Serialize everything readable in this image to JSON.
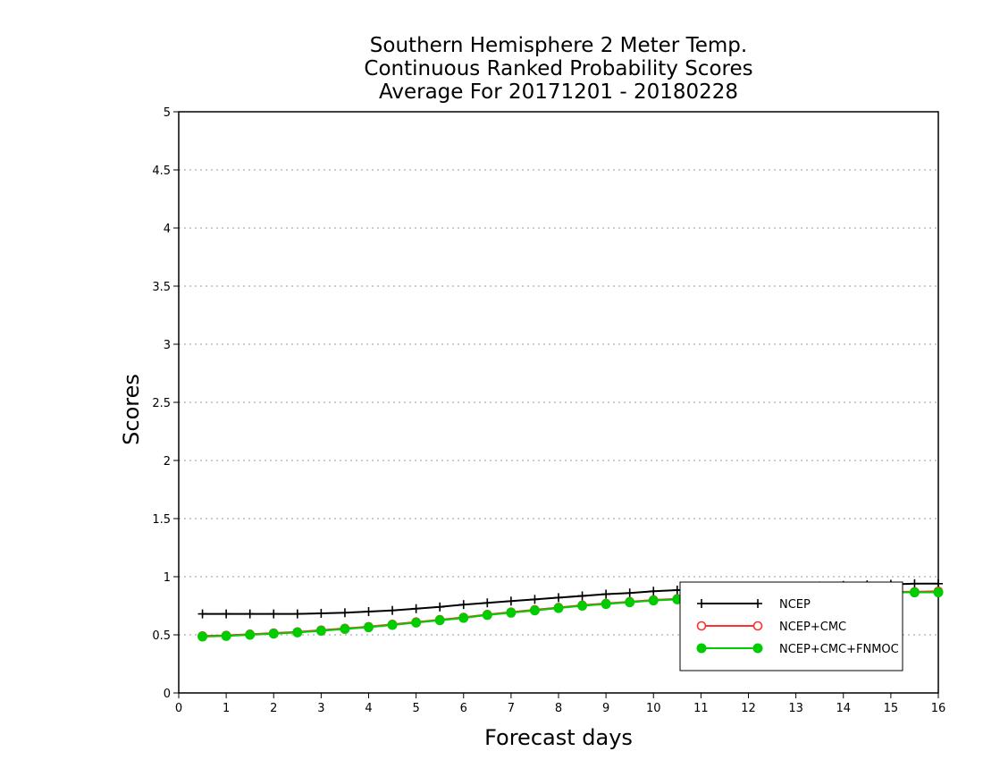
{
  "chart_data": {
    "type": "line",
    "title": [
      "Southern Hemisphere 2 Meter Temp.",
      "Continuous Ranked Probability Scores",
      "Average For 20171201 - 20180228"
    ],
    "xlabel": "Forecast days",
    "ylabel": "Scores",
    "xlim": [
      0,
      16
    ],
    "ylim": [
      0,
      5
    ],
    "x_ticks": [
      "0",
      "1",
      "2",
      "3",
      "4",
      "5",
      "6",
      "7",
      "8",
      "9",
      "10",
      "11",
      "12",
      "13",
      "14",
      "15",
      "16"
    ],
    "y_ticks": [
      "0",
      "0.5",
      "1",
      "1.5",
      "2",
      "2.5",
      "3",
      "3.5",
      "4",
      "4.5",
      "5"
    ],
    "grid": "horizontal dotted",
    "legend_position": "bottom-right",
    "x": [
      0.5,
      1,
      1.5,
      2,
      2.5,
      3,
      3.5,
      4,
      4.5,
      5,
      5.5,
      6,
      6.5,
      7,
      7.5,
      8,
      8.5,
      9,
      9.5,
      10,
      10.5,
      11,
      11.5,
      12,
      12.5,
      13,
      13.5,
      14,
      14.5,
      15,
      15.5,
      16
    ],
    "series": [
      {
        "name": "NCEP",
        "color": "#000000",
        "marker": "plus",
        "values": [
          0.68,
          0.68,
          0.68,
          0.68,
          0.68,
          0.685,
          0.69,
          0.7,
          0.71,
          0.725,
          0.74,
          0.76,
          0.775,
          0.79,
          0.805,
          0.82,
          0.835,
          0.85,
          0.86,
          0.875,
          0.885,
          0.895,
          0.9,
          0.905,
          0.91,
          0.915,
          0.92,
          0.925,
          0.93,
          0.935,
          0.94,
          0.94
        ]
      },
      {
        "name": "NCEP+CMC",
        "color": "#ff3030",
        "marker": "open-circle",
        "values": [
          0.49,
          0.495,
          0.505,
          0.515,
          0.525,
          0.54,
          0.555,
          0.57,
          0.59,
          0.61,
          0.63,
          0.65,
          0.675,
          0.695,
          0.715,
          0.735,
          0.755,
          0.77,
          0.785,
          0.8,
          0.81,
          0.82,
          0.83,
          0.84,
          0.845,
          0.85,
          0.855,
          0.86,
          0.865,
          0.87,
          0.87,
          0.875
        ]
      },
      {
        "name": "NCEP+CMC+FNMOC",
        "color": "#00cc00",
        "marker": "filled-circle",
        "values": [
          0.485,
          0.49,
          0.5,
          0.51,
          0.52,
          0.535,
          0.55,
          0.565,
          0.585,
          0.605,
          0.625,
          0.645,
          0.67,
          0.69,
          0.71,
          0.73,
          0.75,
          0.765,
          0.78,
          0.795,
          0.805,
          0.815,
          0.825,
          0.835,
          0.84,
          0.845,
          0.85,
          0.855,
          0.86,
          0.865,
          0.865,
          0.865
        ]
      }
    ]
  }
}
